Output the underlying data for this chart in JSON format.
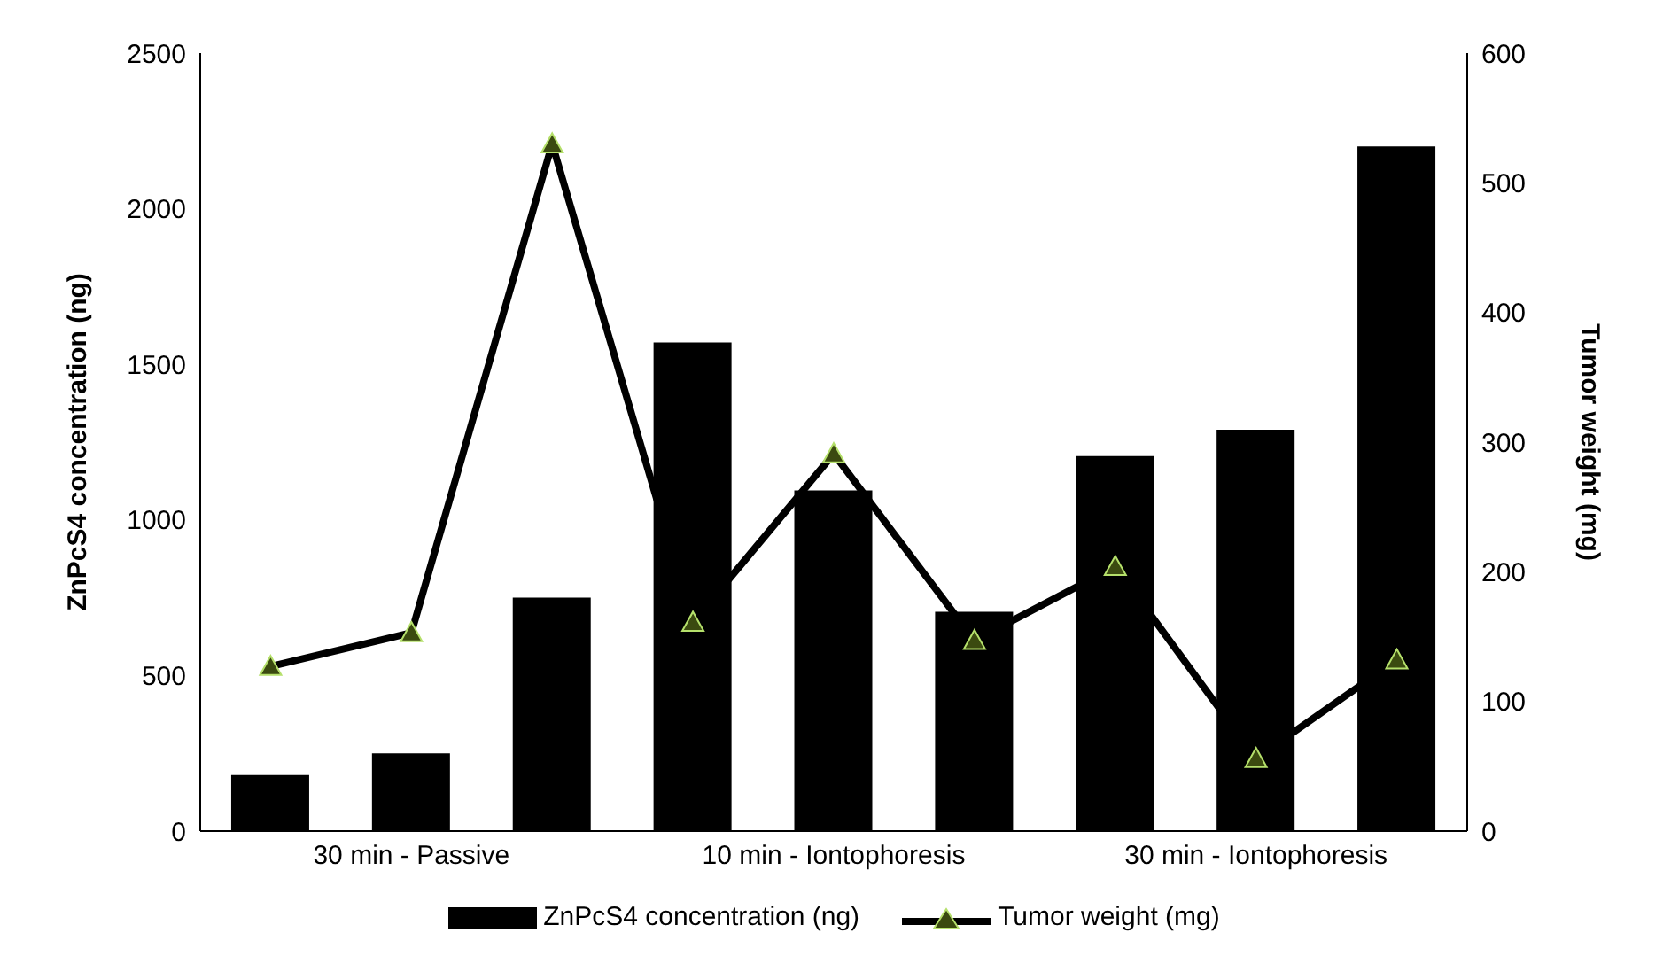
{
  "chart_data": {
    "type": "bar",
    "ylabel": "ZnPcS4 concentration (ng)",
    "y2label": "Tumor weight (mg)",
    "categories": [
      null,
      "30 min - Passive",
      null,
      null,
      "10 min - Iontophoresis",
      null,
      null,
      "30 min - Iontophoresis",
      null
    ],
    "series": [
      {
        "name": "ZnPcS4 concentration (ng)",
        "color": "#000000",
        "values": [
          180,
          250,
          750,
          1570,
          1095,
          705,
          1205,
          1290,
          2200
        ]
      },
      {
        "name": "Tumor weight (mg)",
        "type": "line",
        "axis": "y2",
        "color": "#000000",
        "values": [
          127,
          153,
          530,
          161,
          291,
          147,
          204,
          56,
          132
        ]
      }
    ],
    "ylim": [
      0,
      2500
    ],
    "yticks": [
      0,
      500,
      1000,
      1500,
      2000,
      2500
    ],
    "y2lim": [
      0,
      600
    ],
    "y2ticks": [
      0,
      100,
      200,
      300,
      400,
      500,
      600
    ],
    "marker": "triangle",
    "line_style": "solid",
    "legend": "bottom",
    "grid": false
  }
}
